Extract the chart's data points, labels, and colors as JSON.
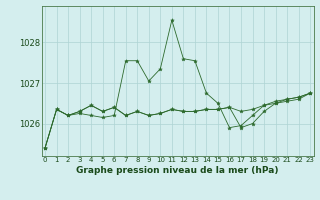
{
  "title": "Graphe pression niveau de la mer (hPa)",
  "xlabel_hours": [
    0,
    1,
    2,
    3,
    4,
    5,
    6,
    7,
    8,
    9,
    10,
    11,
    12,
    13,
    14,
    15,
    16,
    17,
    18,
    19,
    20,
    21,
    22,
    23
  ],
  "series": [
    [
      1025.4,
      1026.35,
      1026.2,
      1026.25,
      1026.2,
      1026.15,
      1026.2,
      1027.55,
      1027.55,
      1027.05,
      1027.35,
      1028.55,
      1027.6,
      1027.55,
      1026.75,
      1026.5,
      1025.9,
      1025.95,
      1026.2,
      1026.45,
      1026.55,
      1026.6,
      1026.65,
      1026.75
    ],
    [
      1025.4,
      1026.35,
      1026.2,
      1026.3,
      1026.45,
      1026.3,
      1026.4,
      1026.2,
      1026.3,
      1026.2,
      1026.25,
      1026.35,
      1026.3,
      1026.3,
      1026.35,
      1026.35,
      1026.4,
      1026.3,
      1026.35,
      1026.45,
      1026.5,
      1026.6,
      1026.65,
      1026.75
    ],
    [
      1025.4,
      1026.35,
      1026.2,
      1026.3,
      1026.45,
      1026.3,
      1026.4,
      1026.2,
      1026.3,
      1026.2,
      1026.25,
      1026.35,
      1026.3,
      1026.3,
      1026.35,
      1026.35,
      1026.4,
      1025.9,
      1026.0,
      1026.3,
      1026.5,
      1026.55,
      1026.6,
      1026.75
    ]
  ],
  "ylim": [
    1025.2,
    1028.9
  ],
  "yticks": [
    1026,
    1027,
    1028
  ],
  "line_color": "#2d6a2d",
  "marker": "*",
  "bg_color": "#d4eeee",
  "grid_color": "#aed4d4",
  "text_color": "#1a4a1a",
  "font_size_ytick": 6,
  "font_size_xtick": 5,
  "font_size_title": 6.5
}
